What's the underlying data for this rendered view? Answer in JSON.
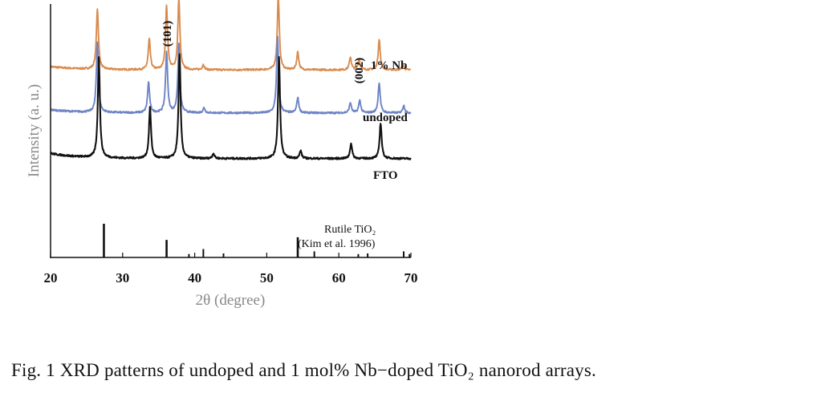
{
  "caption": "Fig. 1 XRD patterns of undoped and 1 mol% Nb−doped TiO₂ nanorod arrays.",
  "chart_data": {
    "type": "line",
    "xlabel": "2θ (degree)",
    "ylabel": "Intensity (a. u.)",
    "xlim": [
      20,
      70
    ],
    "xticks": [
      "20",
      "30",
      "40",
      "50",
      "60",
      "70"
    ],
    "grid": false,
    "series": [
      {
        "name": "1% Nb",
        "color": "#d98b4d",
        "baseline": 0.74,
        "peaks": [
          [
            26.5,
            0.24
          ],
          [
            33.7,
            0.12
          ],
          [
            36.1,
            0.25
          ],
          [
            37.8,
            0.28
          ],
          [
            41.2,
            0.02
          ],
          [
            51.6,
            0.29
          ],
          [
            54.3,
            0.07
          ],
          [
            61.6,
            0.05
          ],
          [
            62.8,
            0.04
          ],
          [
            65.6,
            0.12
          ],
          [
            68.9,
            0.02
          ]
        ]
      },
      {
        "name": "undoped",
        "color": "#6d84c6",
        "baseline": 0.57,
        "peaks": [
          [
            26.5,
            0.28
          ],
          [
            33.6,
            0.12
          ],
          [
            36.1,
            0.24
          ],
          [
            37.8,
            0.27
          ],
          [
            41.3,
            0.02
          ],
          [
            51.5,
            0.3
          ],
          [
            54.3,
            0.06
          ],
          [
            61.6,
            0.04
          ],
          [
            62.9,
            0.05
          ],
          [
            65.6,
            0.12
          ],
          [
            69.0,
            0.03
          ]
        ]
      },
      {
        "name": "FTO",
        "color": "#111111",
        "baseline": 0.39,
        "peaks": [
          [
            26.7,
            0.4
          ],
          [
            33.8,
            0.2
          ],
          [
            37.9,
            0.41
          ],
          [
            42.6,
            0.02
          ],
          [
            51.7,
            0.4
          ],
          [
            54.7,
            0.03
          ],
          [
            61.7,
            0.06
          ],
          [
            65.8,
            0.14
          ]
        ]
      }
    ],
    "reference": {
      "name": "Rutile TiO₂",
      "source": "(Kim et al. 1996)",
      "lines": [
        [
          27.4,
          1.0
        ],
        [
          36.1,
          0.52
        ],
        [
          39.2,
          0.1
        ],
        [
          41.2,
          0.25
        ],
        [
          44.0,
          0.12
        ],
        [
          54.3,
          0.6
        ],
        [
          56.6,
          0.18
        ],
        [
          62.7,
          0.1
        ],
        [
          64.0,
          0.12
        ],
        [
          69.0,
          0.18
        ],
        [
          69.8,
          0.1
        ]
      ]
    },
    "annotations": [
      {
        "text": "(101)",
        "x": 36.1,
        "series": "1% Nb"
      },
      {
        "text": "(002)",
        "x": 62.8,
        "series": "1% Nb"
      }
    ]
  }
}
